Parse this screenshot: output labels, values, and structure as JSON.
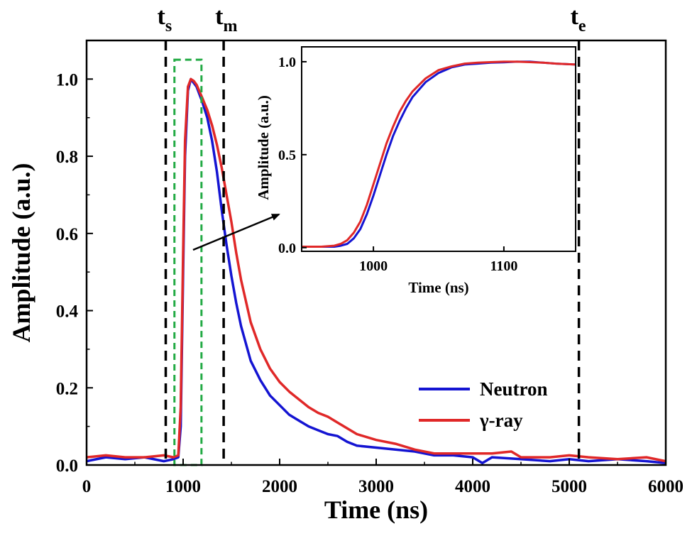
{
  "chart_data": [
    {
      "type": "line",
      "title": "",
      "xlabel": "Time (ns)",
      "ylabel": "Amplitude (a.u.)",
      "xlim": [
        0,
        6000
      ],
      "ylim": [
        0,
        1.1
      ],
      "xticks": [
        "0",
        "1000",
        "2000",
        "3000",
        "4000",
        "5000",
        "6000"
      ],
      "yticks": [
        "0.0",
        "0.2",
        "0.4",
        "0.6",
        "0.8",
        "1.0"
      ],
      "grid": false,
      "legend_position": "lower-right",
      "series": [
        {
          "name": "Neutron",
          "color": "#1414d2",
          "x": [
            0,
            200,
            400,
            600,
            800,
            900,
            950,
            975,
            1000,
            1020,
            1050,
            1080,
            1110,
            1140,
            1200,
            1250,
            1300,
            1350,
            1400,
            1450,
            1500,
            1550,
            1600,
            1700,
            1800,
            1900,
            2000,
            2100,
            2200,
            2300,
            2400,
            2500,
            2600,
            2700,
            2800,
            3000,
            3200,
            3400,
            3600,
            3800,
            4000,
            4100,
            4200,
            4500,
            4800,
            5000,
            5200,
            5500,
            5800,
            6000
          ],
          "y": [
            0.01,
            0.02,
            0.015,
            0.02,
            0.01,
            0.015,
            0.02,
            0.1,
            0.5,
            0.8,
            0.97,
            1.0,
            0.99,
            0.98,
            0.94,
            0.9,
            0.84,
            0.76,
            0.66,
            0.57,
            0.49,
            0.42,
            0.36,
            0.27,
            0.22,
            0.18,
            0.155,
            0.13,
            0.115,
            0.1,
            0.09,
            0.08,
            0.075,
            0.06,
            0.05,
            0.045,
            0.04,
            0.035,
            0.025,
            0.025,
            0.02,
            0.005,
            0.02,
            0.015,
            0.01,
            0.015,
            0.01,
            0.015,
            0.01,
            0.005
          ]
        },
        {
          "name": "γ-ray",
          "color": "#e02828",
          "x": [
            0,
            200,
            400,
            600,
            800,
            900,
            950,
            975,
            1000,
            1020,
            1050,
            1080,
            1110,
            1140,
            1200,
            1250,
            1300,
            1350,
            1400,
            1450,
            1500,
            1550,
            1600,
            1700,
            1800,
            1900,
            2000,
            2100,
            2200,
            2300,
            2400,
            2500,
            2600,
            2700,
            2800,
            3000,
            3200,
            3400,
            3600,
            3800,
            4000,
            4200,
            4400,
            4500,
            4800,
            5000,
            5200,
            5500,
            5800,
            6000
          ],
          "y": [
            0.02,
            0.025,
            0.02,
            0.02,
            0.025,
            0.02,
            0.025,
            0.15,
            0.55,
            0.84,
            0.98,
            1.0,
            0.995,
            0.985,
            0.95,
            0.92,
            0.88,
            0.83,
            0.77,
            0.7,
            0.63,
            0.55,
            0.48,
            0.37,
            0.3,
            0.25,
            0.215,
            0.19,
            0.17,
            0.15,
            0.135,
            0.125,
            0.11,
            0.095,
            0.08,
            0.065,
            0.055,
            0.04,
            0.03,
            0.03,
            0.03,
            0.03,
            0.035,
            0.02,
            0.02,
            0.025,
            0.02,
            0.015,
            0.02,
            0.01
          ]
        }
      ],
      "markers": [
        {
          "main": "t",
          "sub": "s",
          "x": 820
        },
        {
          "main": "t",
          "sub": "m",
          "x": 1420
        },
        {
          "main": "t",
          "sub": "e",
          "x": 5100
        }
      ],
      "highlight_box": {
        "x0": 910,
        "x1": 1190,
        "y0": 0.0,
        "y1": 1.05,
        "color": "#22aa44"
      }
    },
    {
      "type": "line",
      "title": "",
      "xlabel": "Time (ns)",
      "ylabel": "Amplitude (a.u.)",
      "xlim": [
        945,
        1155
      ],
      "ylim": [
        -0.02,
        1.08
      ],
      "xticks": [
        "1000",
        "1100"
      ],
      "yticks": [
        "0.0",
        "0.5",
        "1.0"
      ],
      "grid": false,
      "series": [
        {
          "name": "Neutron",
          "color": "#1414d2",
          "x": [
            945,
            960,
            970,
            975,
            980,
            985,
            990,
            995,
            1000,
            1005,
            1010,
            1015,
            1020,
            1025,
            1030,
            1040,
            1050,
            1060,
            1070,
            1080,
            1090,
            1100,
            1110,
            1120,
            1130,
            1140,
            1155
          ],
          "y": [
            0.005,
            0.005,
            0.005,
            0.01,
            0.02,
            0.05,
            0.1,
            0.18,
            0.28,
            0.39,
            0.5,
            0.6,
            0.68,
            0.75,
            0.81,
            0.89,
            0.94,
            0.97,
            0.985,
            0.99,
            0.995,
            0.997,
            1.0,
            1.0,
            0.995,
            0.99,
            0.985
          ]
        },
        {
          "name": "γ-ray",
          "color": "#e02828",
          "x": [
            945,
            960,
            970,
            975,
            980,
            985,
            990,
            995,
            1000,
            1005,
            1010,
            1015,
            1020,
            1025,
            1030,
            1040,
            1050,
            1060,
            1070,
            1080,
            1090,
            1100,
            1110,
            1120,
            1130,
            1140,
            1155
          ],
          "y": [
            0.005,
            0.005,
            0.01,
            0.02,
            0.04,
            0.08,
            0.14,
            0.23,
            0.34,
            0.45,
            0.56,
            0.65,
            0.73,
            0.79,
            0.84,
            0.91,
            0.955,
            0.975,
            0.99,
            0.995,
            0.998,
            1.0,
            1.0,
            0.998,
            0.995,
            0.99,
            0.985
          ]
        }
      ]
    }
  ]
}
